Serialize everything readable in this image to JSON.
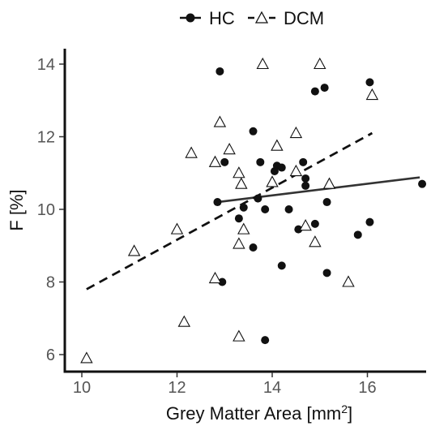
{
  "chart_data": {
    "type": "scatter",
    "xlabel": "Grey Matter Area [mm",
    "xlabel_sup": "2",
    "xlabel_suffix": "]",
    "ylabel": "F [%]",
    "xlim": [
      9.9,
      17.3
    ],
    "ylim": [
      5.5,
      14.4
    ],
    "x_ticks": [
      10,
      12,
      14,
      16
    ],
    "y_ticks": [
      6,
      8,
      10,
      12,
      14
    ],
    "legend_position": "top",
    "grid": false,
    "series": [
      {
        "name": "HC",
        "marker": "filled-circle",
        "line_style": "solid",
        "color": "#111111",
        "points": [
          [
            12.9,
            13.8
          ],
          [
            13.6,
            12.15
          ],
          [
            13.0,
            11.3
          ],
          [
            13.75,
            11.3
          ],
          [
            14.05,
            11.05
          ],
          [
            14.1,
            11.2
          ],
          [
            14.2,
            11.15
          ],
          [
            14.65,
            11.3
          ],
          [
            14.7,
            10.85
          ],
          [
            14.7,
            10.65
          ],
          [
            12.85,
            10.2
          ],
          [
            13.4,
            10.05
          ],
          [
            13.3,
            9.75
          ],
          [
            13.7,
            10.3
          ],
          [
            13.85,
            10.0
          ],
          [
            14.35,
            10.0
          ],
          [
            15.15,
            10.2
          ],
          [
            14.9,
            9.6
          ],
          [
            14.55,
            9.45
          ],
          [
            13.6,
            8.95
          ],
          [
            14.2,
            8.45
          ],
          [
            12.95,
            8.0
          ],
          [
            15.15,
            8.25
          ],
          [
            15.8,
            9.3
          ],
          [
            16.05,
            9.65
          ],
          [
            14.9,
            13.25
          ],
          [
            15.1,
            13.35
          ],
          [
            16.05,
            13.5
          ],
          [
            17.15,
            10.7
          ],
          [
            13.85,
            6.4
          ]
        ],
        "fit": [
          [
            12.85,
            10.2
          ],
          [
            17.1,
            10.88
          ]
        ]
      },
      {
        "name": "DCM",
        "marker": "open-triangle",
        "line_style": "dashed",
        "color": "#111111",
        "points": [
          [
            10.1,
            5.9
          ],
          [
            11.1,
            8.85
          ],
          [
            12.0,
            9.45
          ],
          [
            12.3,
            11.55
          ],
          [
            12.15,
            6.9
          ],
          [
            12.8,
            11.3
          ],
          [
            12.9,
            12.4
          ],
          [
            13.1,
            11.65
          ],
          [
            12.8,
            8.1
          ],
          [
            13.3,
            11.0
          ],
          [
            13.35,
            10.7
          ],
          [
            13.3,
            9.05
          ],
          [
            13.4,
            9.45
          ],
          [
            13.8,
            14.0
          ],
          [
            13.3,
            6.5
          ],
          [
            14.0,
            10.75
          ],
          [
            14.1,
            11.75
          ],
          [
            14.5,
            12.1
          ],
          [
            14.5,
            11.05
          ],
          [
            14.7,
            9.55
          ],
          [
            14.9,
            9.1
          ],
          [
            15.0,
            14.0
          ],
          [
            15.2,
            10.7
          ],
          [
            15.6,
            8.0
          ],
          [
            16.1,
            13.15
          ]
        ],
        "fit": [
          [
            10.1,
            7.8
          ],
          [
            16.1,
            12.1
          ]
        ]
      }
    ]
  }
}
